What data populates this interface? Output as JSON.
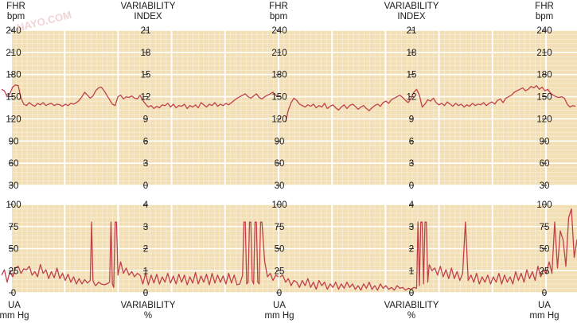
{
  "watermark": "NAYO.COM",
  "colors": {
    "panel": "#f2dfb6",
    "grid": "#ffffff",
    "trace": "#c0404a",
    "axis": "#1a1a1a"
  },
  "chart_data": {
    "type": "line",
    "top_panel": {
      "left_axis": {
        "title_lines": [
          "FHR",
          "bpm"
        ],
        "range": [
          30,
          240
        ],
        "ticks": [
          "240",
          "210",
          "180",
          "150",
          "120",
          "90",
          "60",
          "30"
        ]
      },
      "right_axis": {
        "title_lines": [
          "VARIABILITY",
          "INDEX"
        ],
        "range": [
          0,
          21
        ],
        "ticks": [
          "21",
          "18",
          "15",
          "12",
          "9",
          "6",
          "3",
          "0"
        ]
      },
      "series": [
        {
          "segment": 1,
          "x": [
            0,
            2,
            4,
            6,
            8,
            10,
            12,
            14,
            16,
            18,
            20,
            22,
            24,
            26,
            28,
            30,
            32,
            34,
            36,
            38,
            40,
            42,
            44,
            46,
            48,
            50,
            52,
            54,
            56,
            58,
            60,
            62,
            64,
            66,
            68,
            70,
            72,
            74,
            76,
            78,
            80,
            82,
            84,
            86,
            88,
            90,
            92,
            94,
            96,
            98,
            100
          ],
          "y": [
            160,
            158,
            150,
            154,
            163,
            166,
            165,
            148,
            140,
            138,
            142,
            139,
            137,
            141,
            139,
            142,
            138,
            140,
            141,
            138,
            140,
            139,
            137,
            140,
            138,
            141,
            140,
            142,
            145,
            150,
            156,
            152,
            148,
            151,
            158,
            162,
            163,
            158,
            152,
            146,
            140,
            138,
            150,
            152,
            147,
            150,
            149,
            151,
            148,
            147,
            152
          ]
        },
        {
          "segment": 1,
          "x": [
            100,
            102,
            104,
            106,
            108,
            110,
            112,
            114,
            116,
            118,
            120,
            122,
            124,
            126,
            128,
            130,
            132,
            134,
            136,
            138,
            140,
            142,
            144,
            146,
            148,
            150,
            152,
            154,
            156,
            158,
            160,
            162,
            164,
            166,
            168,
            170,
            172,
            174,
            176,
            178,
            180,
            182,
            184,
            186,
            188,
            190,
            192,
            194,
            196,
            198,
            200
          ],
          "y": [
            152,
            145,
            140,
            136,
            138,
            134,
            137,
            135,
            139,
            138,
            141,
            136,
            140,
            135,
            138,
            137,
            140,
            134,
            138,
            136,
            139,
            135,
            142,
            139,
            136,
            140,
            138,
            142,
            137,
            140,
            138,
            141,
            139,
            142,
            145,
            148,
            150,
            152,
            154,
            150,
            148,
            151,
            154,
            149,
            147,
            150,
            152,
            154,
            156,
            152,
            150
          ]
        },
        {
          "segment": 2,
          "x": [
            205,
            207,
            209,
            211,
            213,
            215,
            217,
            219,
            221,
            223,
            225,
            227,
            229,
            231,
            233,
            235,
            237,
            239,
            241,
            243,
            245,
            247,
            249,
            251,
            253,
            255,
            257,
            259,
            261,
            263,
            265,
            267,
            269,
            271,
            273,
            275,
            277,
            279,
            281,
            283,
            285,
            287,
            289,
            291,
            293,
            295,
            297,
            299,
            301
          ],
          "y": [
            116,
            132,
            142,
            148,
            145,
            140,
            138,
            136,
            139,
            137,
            140,
            135,
            138,
            136,
            141,
            134,
            137,
            139,
            135,
            132,
            136,
            139,
            134,
            138,
            140,
            137,
            133,
            136,
            138,
            134,
            131,
            135,
            138,
            140,
            137,
            142,
            144,
            141,
            146,
            148,
            150,
            152,
            149,
            145,
            142,
            148,
            156,
            160,
            152
          ]
        },
        {
          "segment": 2,
          "x": [
            301,
            303,
            305,
            307,
            309,
            311,
            313,
            315,
            317,
            319,
            321,
            323,
            325,
            327,
            329,
            331,
            333,
            335,
            337,
            339,
            341,
            343,
            345,
            347,
            349,
            351,
            353,
            355,
            357,
            359,
            361,
            363,
            365,
            367,
            369,
            371,
            373,
            375,
            377,
            379,
            381,
            383,
            385,
            387,
            389,
            391,
            393,
            395,
            397,
            399,
            401,
            403,
            405,
            407,
            409,
            411,
            413
          ],
          "y": [
            152,
            136,
            140,
            146,
            144,
            148,
            142,
            139,
            141,
            138,
            143,
            140,
            137,
            141,
            138,
            140,
            136,
            139,
            137,
            141,
            138,
            140,
            139,
            142,
            138,
            141,
            143,
            140,
            145,
            147,
            142,
            148,
            150,
            152,
            156,
            158,
            160,
            162,
            158,
            160,
            164,
            162,
            165,
            160,
            163,
            158,
            160,
            155,
            152,
            150,
            149,
            150,
            148,
            140,
            136,
            138,
            137
          ]
        }
      ]
    },
    "bottom_panel": {
      "left_axis": {
        "title_lines": [
          "UA",
          "mm Hg"
        ],
        "range": [
          0,
          100
        ],
        "ticks": [
          "100",
          "75",
          "50",
          "25",
          "0"
        ]
      },
      "right_axis": {
        "title_lines": [
          "VARIABILITY",
          "%"
        ],
        "range": [
          0,
          4
        ],
        "ticks": [
          "4",
          "3",
          "2",
          "1",
          "0"
        ]
      },
      "series": [
        {
          "segment": 1,
          "x": [
            0,
            2,
            4,
            6,
            8,
            10,
            12,
            14,
            16,
            18,
            20,
            22,
            24,
            26,
            28,
            30,
            32,
            34,
            36,
            38,
            40,
            42,
            44,
            46,
            48,
            50,
            52,
            54,
            56,
            58,
            60,
            62,
            64,
            65,
            66,
            67,
            68,
            70,
            72,
            74,
            76,
            78,
            79,
            80,
            81,
            82,
            83,
            84,
            86,
            88,
            90,
            92,
            94,
            96,
            98,
            100
          ],
          "y": [
            20,
            26,
            12,
            24,
            18,
            28,
            30,
            22,
            27,
            26,
            30,
            20,
            24,
            18,
            32,
            22,
            26,
            16,
            24,
            17,
            28,
            16,
            22,
            14,
            21,
            12,
            18,
            10,
            16,
            10,
            15,
            11,
            14,
            80,
            14,
            10,
            8,
            12,
            10,
            9,
            10,
            12,
            80,
            10,
            6,
            80,
            80,
            20,
            35,
            22,
            28,
            20,
            24,
            18,
            22,
            20
          ]
        },
        {
          "segment": 1,
          "x": [
            100,
            102,
            104,
            106,
            108,
            110,
            112,
            114,
            116,
            118,
            120,
            122,
            124,
            126,
            128,
            130,
            132,
            134,
            136,
            138,
            140,
            142,
            144,
            146,
            148,
            150,
            152,
            154,
            156,
            158,
            160,
            162,
            164,
            166,
            168,
            170,
            172,
            174,
            175,
            176,
            177,
            178,
            179,
            180,
            181,
            182,
            183,
            184,
            185,
            186,
            187,
            188,
            190,
            192,
            194,
            196,
            198,
            200
          ],
          "y": [
            20,
            10,
            22,
            9,
            20,
            11,
            21,
            10,
            18,
            12,
            22,
            11,
            19,
            10,
            21,
            12,
            20,
            9,
            18,
            11,
            23,
            10,
            19,
            12,
            21,
            9,
            22,
            11,
            20,
            12,
            19,
            10,
            22,
            11,
            20,
            9,
            10,
            20,
            80,
            80,
            10,
            12,
            80,
            80,
            14,
            10,
            80,
            80,
            12,
            10,
            80,
            80,
            35,
            18,
            22,
            14,
            20,
            18
          ]
        },
        {
          "segment": 2,
          "x": [
            201,
            203,
            205,
            207,
            209,
            211,
            213,
            215,
            217,
            219,
            221,
            223,
            225,
            227,
            229,
            231,
            233,
            235,
            237,
            239,
            241,
            243,
            245,
            247,
            249,
            251,
            253,
            255,
            257,
            259,
            261,
            263,
            265,
            267,
            269,
            271,
            273,
            275,
            277,
            279,
            281,
            283,
            285,
            287,
            289,
            291,
            293,
            295,
            297,
            299,
            300,
            301,
            302,
            303,
            304,
            305,
            306,
            307,
            308
          ],
          "y": [
            18,
            20,
            12,
            16,
            8,
            14,
            12,
            6,
            14,
            8,
            16,
            6,
            12,
            4,
            14,
            8,
            12,
            4,
            10,
            6,
            12,
            4,
            10,
            5,
            12,
            6,
            10,
            4,
            8,
            3,
            10,
            5,
            12,
            4,
            8,
            3,
            10,
            5,
            8,
            4,
            6,
            3,
            8,
            5,
            6,
            3,
            5,
            4,
            6,
            5,
            80,
            8,
            80,
            80,
            10,
            80,
            80,
            12,
            32
          ]
        },
        {
          "segment": 2,
          "x": [
            308,
            310,
            312,
            314,
            316,
            318,
            320,
            322,
            324,
            326,
            328,
            330,
            332,
            334,
            336,
            338,
            340,
            342,
            344,
            346,
            348,
            350,
            352,
            354,
            356,
            358,
            360,
            362,
            364,
            366,
            368,
            370,
            372,
            374,
            376,
            378,
            380,
            382,
            384,
            386,
            388,
            390,
            392,
            394,
            396,
            398,
            400,
            402,
            404,
            406,
            408,
            410,
            412,
            414,
            416,
            418,
            420,
            422
          ],
          "y": [
            32,
            25,
            28,
            20,
            30,
            18,
            26,
            16,
            28,
            16,
            24,
            14,
            22,
            80,
            14,
            20,
            12,
            22,
            10,
            18,
            12,
            20,
            10,
            18,
            12,
            22,
            10,
            20,
            12,
            18,
            10,
            24,
            14,
            22,
            12,
            26,
            16,
            24,
            14,
            30,
            18,
            26,
            22,
            35,
            22,
            80,
            28,
            70,
            60,
            30,
            85,
            95,
            40,
            60,
            45,
            50,
            62,
            60
          ]
        }
      ]
    }
  }
}
